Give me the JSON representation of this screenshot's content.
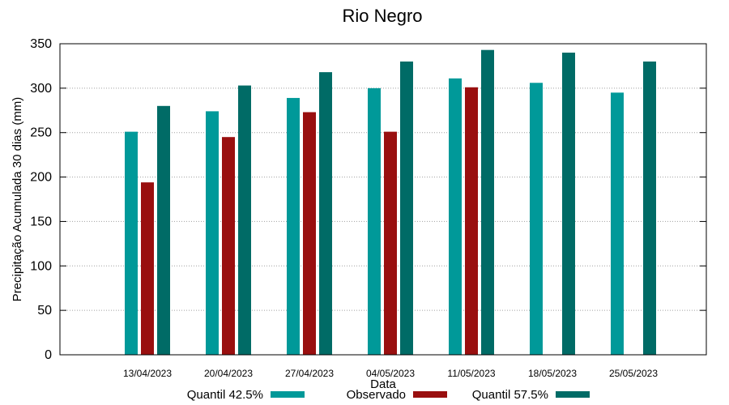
{
  "chart_data": {
    "type": "bar",
    "title": "Rio Negro",
    "xlabel": "Data",
    "ylabel": "Precipitação Acumulada 30 dias (mm)",
    "ylim": [
      0,
      350
    ],
    "yticks": [
      0,
      50,
      100,
      150,
      200,
      250,
      300,
      350
    ],
    "grid": true,
    "legend_position": "bottom",
    "categories": [
      "13/04/2023",
      "20/04/2023",
      "27/04/2023",
      "04/05/2023",
      "11/05/2023",
      "18/05/2023",
      "25/05/2023"
    ],
    "series": [
      {
        "name": "Quantil 42.5%",
        "color": "#009999",
        "values": [
          251,
          274,
          289,
          300,
          311,
          306,
          295
        ]
      },
      {
        "name": "Observado",
        "color": "#990f0f",
        "values": [
          194,
          245,
          273,
          251,
          301,
          null,
          null
        ]
      },
      {
        "name": "Quantil 57.5%",
        "color": "#006b66",
        "values": [
          280,
          303,
          318,
          330,
          343,
          340,
          330
        ]
      }
    ]
  }
}
